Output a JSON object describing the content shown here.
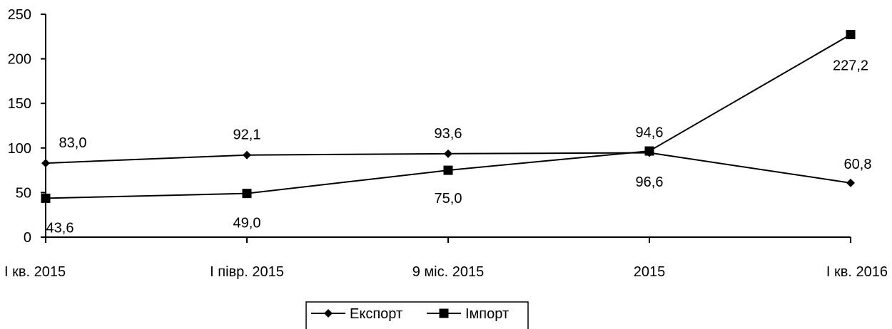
{
  "chart_data": {
    "type": "line",
    "categories": [
      "I кв. 2015",
      "I півр. 2015",
      "9 міс. 2015",
      "2015",
      "I кв. 2016"
    ],
    "series": [
      {
        "name": "Експорт",
        "marker": "diamond",
        "color": "#000000",
        "values": [
          83.0,
          92.1,
          93.6,
          94.6,
          60.8
        ],
        "labels": [
          "83,0",
          "92,1",
          "93,6",
          "94,6",
          "60,8"
        ]
      },
      {
        "name": "Імпорт",
        "marker": "square",
        "color": "#000000",
        "values": [
          43.6,
          49.0,
          75.0,
          96.6,
          227.2
        ],
        "labels": [
          "43,6",
          "49,0",
          "75,0",
          "96,6",
          "227,2"
        ]
      }
    ],
    "ylim": [
      0,
      250
    ],
    "yticks": [
      0,
      50,
      100,
      150,
      200,
      250
    ],
    "ytick_labels": [
      "0",
      "50",
      "100",
      "150",
      "200",
      "250"
    ],
    "grid": false,
    "legend": "bottom-center"
  }
}
